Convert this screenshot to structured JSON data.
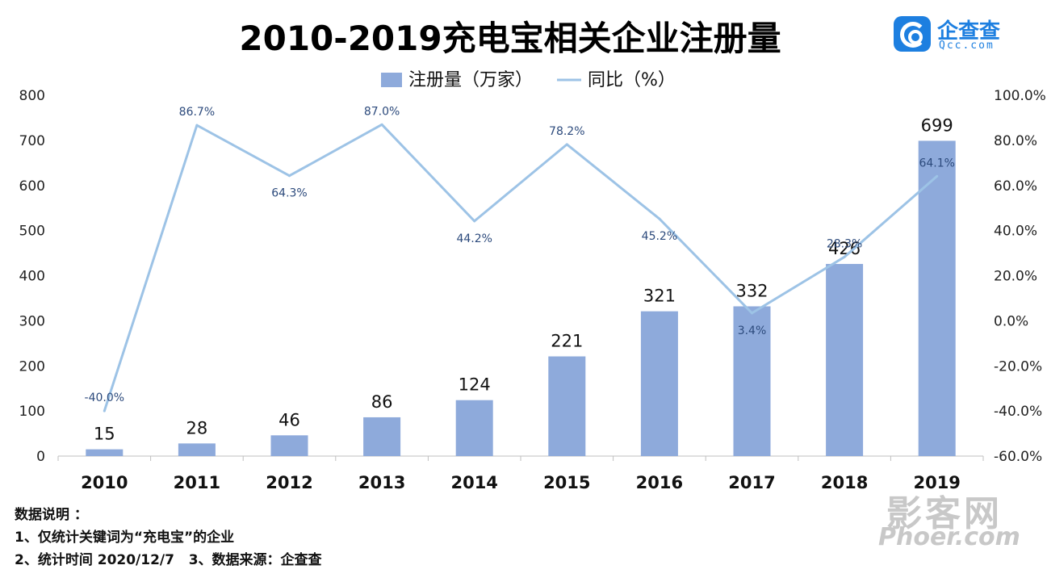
{
  "title": "2010-2019充电宝相关企业注册量",
  "logo": {
    "name": "企查查",
    "domain": "Qcc.com"
  },
  "watermark": {
    "top": "影客网",
    "bottom": "Phoer.com"
  },
  "notes": [
    "数据说明 ：",
    "1、仅统计关键词为“充电宝”的企业",
    "2、统计时间 2020/12/7   3、数据来源：企查查"
  ],
  "colors": {
    "bar": "#8eaadb",
    "line": "#9dc3e6",
    "axis": "#bfbfbf",
    "logo": "#1d7fe0"
  },
  "chart_data": {
    "type": "bar",
    "title": "2010-2019充电宝相关企业注册量",
    "categories": [
      "2010",
      "2011",
      "2012",
      "2013",
      "2014",
      "2015",
      "2016",
      "2017",
      "2018",
      "2019"
    ],
    "legend_position": "top-center",
    "grid": false,
    "y_left": {
      "min": 0,
      "max": 800,
      "step": 100,
      "ticks": [
        "0",
        "100",
        "200",
        "300",
        "400",
        "500",
        "600",
        "700",
        "800"
      ]
    },
    "y_right": {
      "min": -60,
      "max": 100,
      "step": 20,
      "ticks": [
        "-60.0%",
        "-40.0%",
        "-20.0%",
        "0.0%",
        "20.0%",
        "40.0%",
        "60.0%",
        "80.0%",
        "100.0%"
      ]
    },
    "series": [
      {
        "name": "注册量（万家）",
        "type": "bar",
        "axis": "left",
        "values": [
          15,
          28,
          46,
          86,
          124,
          221,
          321,
          332,
          426,
          699
        ],
        "labels": [
          "15",
          "28",
          "46",
          "86",
          "124",
          "221",
          "321",
          "332",
          "426",
          "699"
        ]
      },
      {
        "name": "同比（%）",
        "type": "line",
        "axis": "right",
        "values": [
          -40.0,
          86.7,
          64.3,
          87.0,
          44.2,
          78.2,
          45.2,
          3.4,
          28.3,
          64.1
        ],
        "labels": [
          "-40.0%",
          "86.7%",
          "64.3%",
          "87.0%",
          "44.2%",
          "78.2%",
          "45.2%",
          "3.4%",
          "28.3%",
          "64.1%"
        ]
      }
    ]
  }
}
